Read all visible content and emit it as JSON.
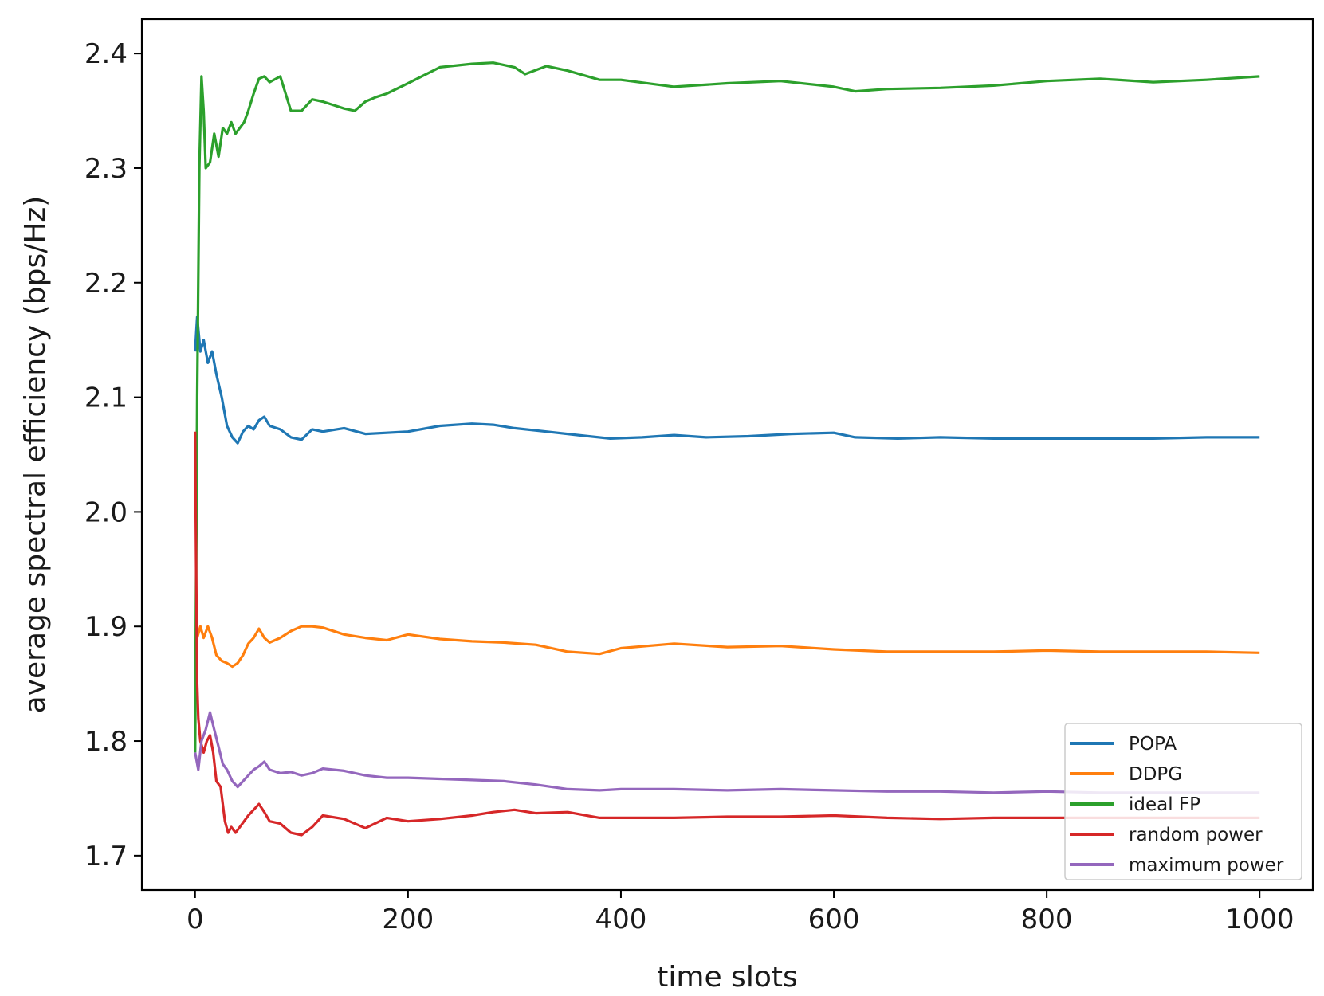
{
  "chart_data": {
    "type": "line",
    "title": "",
    "xlabel": "time slots",
    "ylabel": "average spectral efficiency (bps/Hz)",
    "xlim": [
      -50,
      1050
    ],
    "ylim": [
      1.67,
      2.43
    ],
    "xticks": [
      0,
      200,
      400,
      600,
      800,
      1000
    ],
    "yticks": [
      1.7,
      1.8,
      1.9,
      2.0,
      2.1,
      2.2,
      2.3,
      2.4
    ],
    "xtick_labels": [
      "0",
      "200",
      "400",
      "600",
      "800",
      "1000"
    ],
    "ytick_labels": [
      "1.7",
      "1.8",
      "1.9",
      "2.0",
      "2.1",
      "2.2",
      "2.3",
      "2.4"
    ],
    "grid": false,
    "legend_position": "lower-right",
    "series": [
      {
        "name": "POPA",
        "color": "#1f77b4",
        "x": [
          0,
          2,
          5,
          8,
          12,
          16,
          20,
          25,
          30,
          35,
          40,
          45,
          50,
          55,
          60,
          65,
          70,
          80,
          90,
          100,
          110,
          120,
          140,
          160,
          180,
          200,
          230,
          260,
          280,
          300,
          330,
          360,
          390,
          420,
          450,
          480,
          520,
          560,
          600,
          620,
          660,
          700,
          750,
          800,
          850,
          900,
          950,
          1000
        ],
        "y": [
          2.14,
          2.17,
          2.14,
          2.15,
          2.13,
          2.14,
          2.12,
          2.1,
          2.075,
          2.065,
          2.06,
          2.07,
          2.075,
          2.072,
          2.08,
          2.083,
          2.075,
          2.072,
          2.065,
          2.063,
          2.072,
          2.07,
          2.073,
          2.068,
          2.069,
          2.07,
          2.075,
          2.077,
          2.076,
          2.073,
          2.07,
          2.067,
          2.064,
          2.065,
          2.067,
          2.065,
          2.066,
          2.068,
          2.069,
          2.065,
          2.064,
          2.065,
          2.064,
          2.064,
          2.064,
          2.064,
          2.065,
          2.065
        ]
      },
      {
        "name": "DDPG",
        "color": "#ff7f0e",
        "x": [
          0,
          2,
          5,
          8,
          12,
          16,
          20,
          25,
          30,
          35,
          40,
          45,
          50,
          55,
          60,
          65,
          70,
          80,
          90,
          100,
          110,
          120,
          140,
          160,
          180,
          200,
          230,
          260,
          290,
          320,
          350,
          380,
          400,
          450,
          500,
          550,
          600,
          650,
          700,
          750,
          800,
          850,
          900,
          950,
          1000
        ],
        "y": [
          1.85,
          1.89,
          1.9,
          1.89,
          1.9,
          1.89,
          1.875,
          1.87,
          1.868,
          1.865,
          1.868,
          1.875,
          1.885,
          1.89,
          1.898,
          1.89,
          1.886,
          1.89,
          1.896,
          1.9,
          1.9,
          1.899,
          1.893,
          1.89,
          1.888,
          1.893,
          1.889,
          1.887,
          1.886,
          1.884,
          1.878,
          1.876,
          1.881,
          1.885,
          1.882,
          1.883,
          1.88,
          1.878,
          1.878,
          1.878,
          1.879,
          1.878,
          1.878,
          1.878,
          1.877
        ]
      },
      {
        "name": "ideal FP",
        "color": "#2ca02c",
        "x": [
          0,
          2,
          4,
          6,
          8,
          10,
          14,
          18,
          22,
          26,
          30,
          34,
          38,
          42,
          46,
          50,
          55,
          60,
          65,
          70,
          80,
          90,
          100,
          110,
          120,
          130,
          140,
          150,
          160,
          170,
          180,
          200,
          230,
          260,
          280,
          300,
          310,
          330,
          350,
          380,
          400,
          450,
          500,
          550,
          600,
          620,
          650,
          700,
          750,
          800,
          850,
          900,
          950,
          1000
        ],
        "y": [
          1.79,
          2.1,
          2.3,
          2.38,
          2.35,
          2.3,
          2.305,
          2.33,
          2.31,
          2.335,
          2.33,
          2.34,
          2.33,
          2.335,
          2.34,
          2.35,
          2.365,
          2.378,
          2.38,
          2.375,
          2.38,
          2.35,
          2.35,
          2.36,
          2.358,
          2.355,
          2.352,
          2.35,
          2.358,
          2.362,
          2.365,
          2.374,
          2.388,
          2.391,
          2.392,
          2.388,
          2.382,
          2.389,
          2.385,
          2.377,
          2.377,
          2.371,
          2.374,
          2.376,
          2.371,
          2.367,
          2.369,
          2.37,
          2.372,
          2.376,
          2.378,
          2.375,
          2.377,
          2.38
        ]
      },
      {
        "name": "random power",
        "color": "#d62728",
        "x": [
          0,
          1,
          2,
          3,
          5,
          8,
          11,
          14,
          17,
          20,
          24,
          28,
          31,
          34,
          38,
          42,
          46,
          50,
          55,
          60,
          65,
          70,
          80,
          90,
          100,
          110,
          120,
          140,
          160,
          180,
          200,
          230,
          260,
          280,
          300,
          320,
          350,
          380,
          400,
          450,
          500,
          550,
          600,
          650,
          700,
          750,
          800,
          850,
          900,
          950,
          1000
        ],
        "y": [
          2.07,
          1.95,
          1.85,
          1.82,
          1.8,
          1.79,
          1.8,
          1.805,
          1.79,
          1.765,
          1.76,
          1.73,
          1.72,
          1.725,
          1.72,
          1.725,
          1.73,
          1.735,
          1.74,
          1.745,
          1.738,
          1.73,
          1.728,
          1.72,
          1.718,
          1.725,
          1.735,
          1.732,
          1.724,
          1.733,
          1.73,
          1.732,
          1.735,
          1.738,
          1.74,
          1.737,
          1.738,
          1.733,
          1.733,
          1.733,
          1.734,
          1.734,
          1.735,
          1.733,
          1.732,
          1.733,
          1.733,
          1.733,
          1.733,
          1.733,
          1.733
        ]
      },
      {
        "name": "maximum power",
        "color": "#9467bd",
        "x": [
          0,
          3,
          6,
          10,
          14,
          18,
          22,
          26,
          30,
          35,
          40,
          45,
          50,
          55,
          60,
          65,
          70,
          80,
          90,
          100,
          110,
          120,
          140,
          160,
          180,
          200,
          230,
          260,
          290,
          320,
          350,
          380,
          400,
          450,
          500,
          550,
          600,
          650,
          700,
          750,
          800,
          850,
          900,
          950,
          1000
        ],
        "y": [
          1.79,
          1.775,
          1.8,
          1.81,
          1.825,
          1.81,
          1.795,
          1.78,
          1.775,
          1.765,
          1.76,
          1.765,
          1.77,
          1.775,
          1.778,
          1.782,
          1.775,
          1.772,
          1.773,
          1.77,
          1.772,
          1.776,
          1.774,
          1.77,
          1.768,
          1.768,
          1.767,
          1.766,
          1.765,
          1.762,
          1.758,
          1.757,
          1.758,
          1.758,
          1.757,
          1.758,
          1.757,
          1.756,
          1.756,
          1.755,
          1.756,
          1.755,
          1.755,
          1.755,
          1.755
        ]
      }
    ]
  }
}
